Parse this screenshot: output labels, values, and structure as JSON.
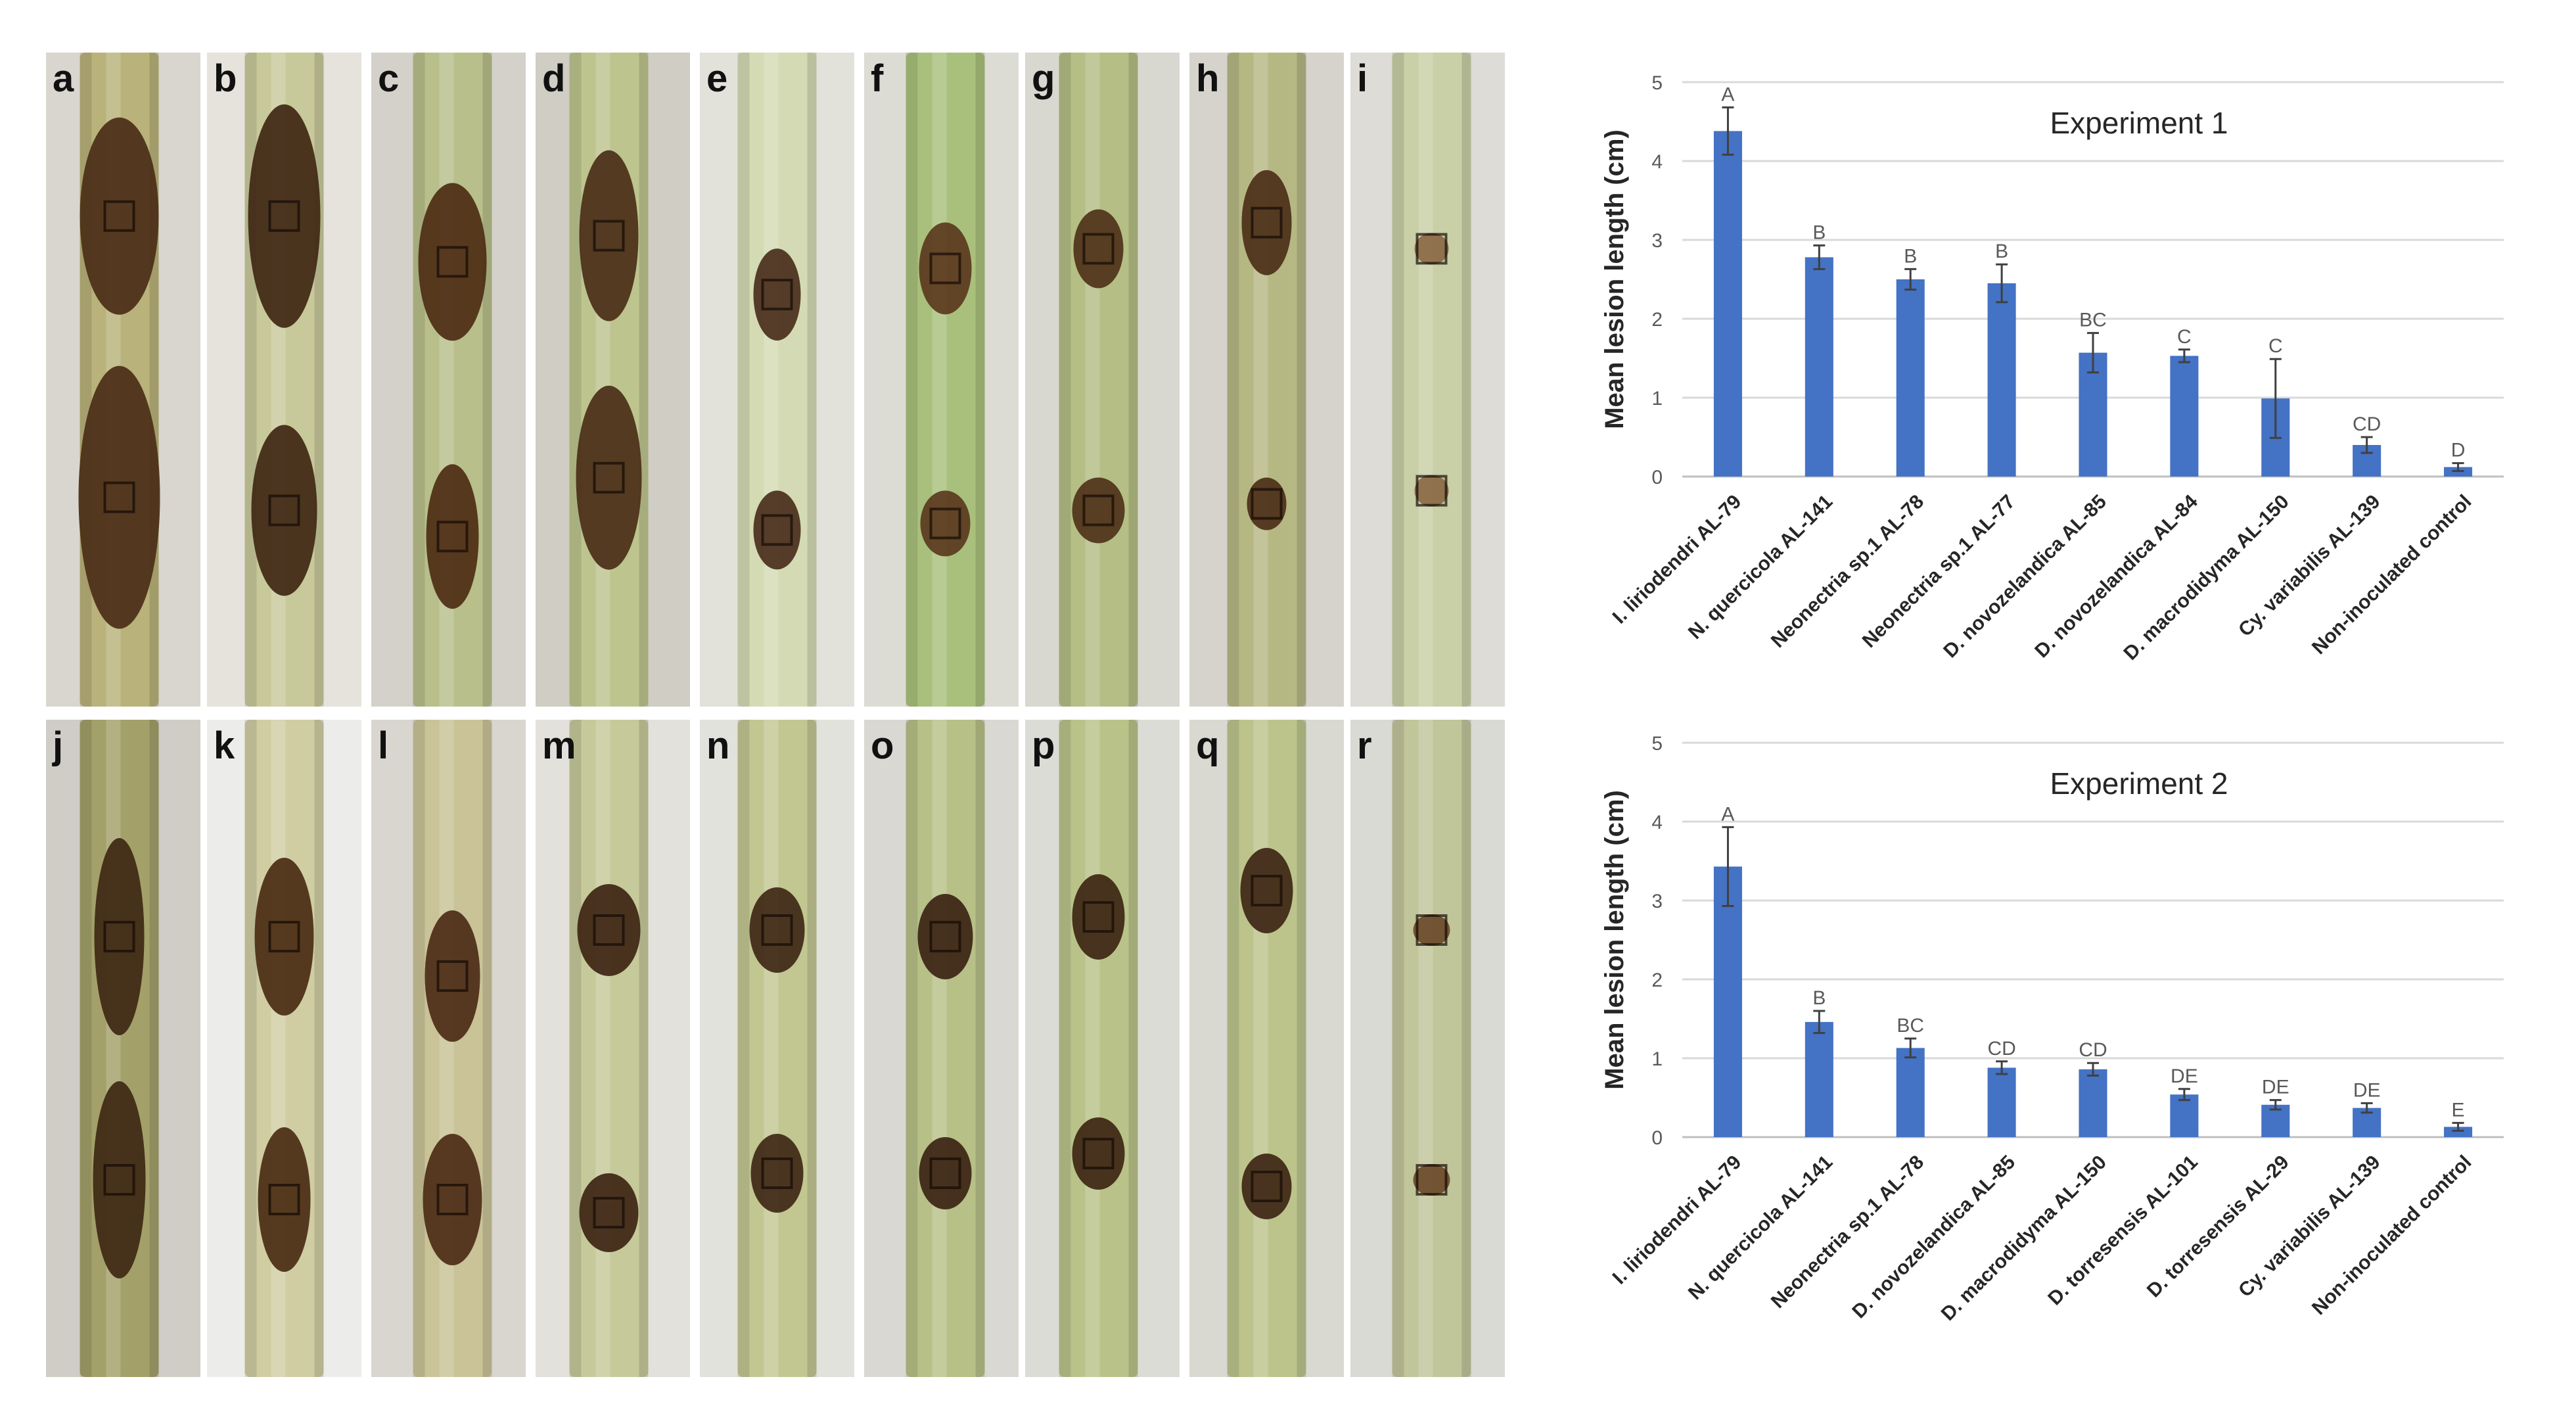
{
  "figure": {
    "panels_top": [
      "a",
      "b",
      "c",
      "d",
      "e",
      "f",
      "g",
      "h",
      "i"
    ],
    "panels_bottom": [
      "j",
      "k",
      "l",
      "m",
      "n",
      "o",
      "p",
      "q",
      "r"
    ]
  },
  "chart_data": [
    {
      "type": "bar",
      "title": "Experiment 1",
      "ylabel": "Mean lesion  length (cm)",
      "ylim": [
        0,
        5
      ],
      "yticks": [
        0,
        1,
        2,
        3,
        4,
        5
      ],
      "grid": true,
      "color": "#4472c4",
      "categories": [
        "I. liriodendri AL-79",
        "N. quercicola AL-141",
        "Neonectria sp.1 AL-78",
        "Neonectria sp.1 AL-77",
        "D. novozelandica AL-85",
        "D. novozelandica AL-84",
        "D. macrodidyma AL-150",
        "Cy. variabilis AL-139",
        "Non-inoculated control"
      ],
      "values": [
        4.38,
        2.78,
        2.5,
        2.45,
        1.57,
        1.53,
        0.99,
        0.4,
        0.12
      ],
      "errors": [
        0.3,
        0.15,
        0.13,
        0.24,
        0.25,
        0.08,
        0.5,
        0.1,
        0.05
      ],
      "letters": [
        "A",
        "B",
        "B",
        "B",
        "BC",
        "C",
        "C",
        "CD",
        "D"
      ]
    },
    {
      "type": "bar",
      "title": "Experiment 2",
      "ylabel": "Mean lesion length (cm)",
      "ylim": [
        0,
        5
      ],
      "yticks": [
        0,
        1,
        2,
        3,
        4,
        5
      ],
      "grid": true,
      "color": "#4472c4",
      "categories": [
        "I. liriodendri AL-79",
        "N. quercicola AL-141",
        "Neonectria sp.1 AL-78",
        "D. novozelandica AL-85",
        "D. macrodidyma AL-150",
        "D. torresensis AL-101",
        "D. torresensis AL-29",
        "Cy. variabilis AL-139",
        "Non-inoculated control"
      ],
      "values": [
        3.43,
        1.46,
        1.13,
        0.88,
        0.86,
        0.54,
        0.41,
        0.37,
        0.13
      ],
      "errors": [
        0.5,
        0.14,
        0.12,
        0.08,
        0.08,
        0.07,
        0.06,
        0.06,
        0.05
      ],
      "letters": [
        "A",
        "B",
        "BC",
        "CD",
        "CD",
        "DE",
        "DE",
        "DE",
        "E"
      ]
    }
  ]
}
